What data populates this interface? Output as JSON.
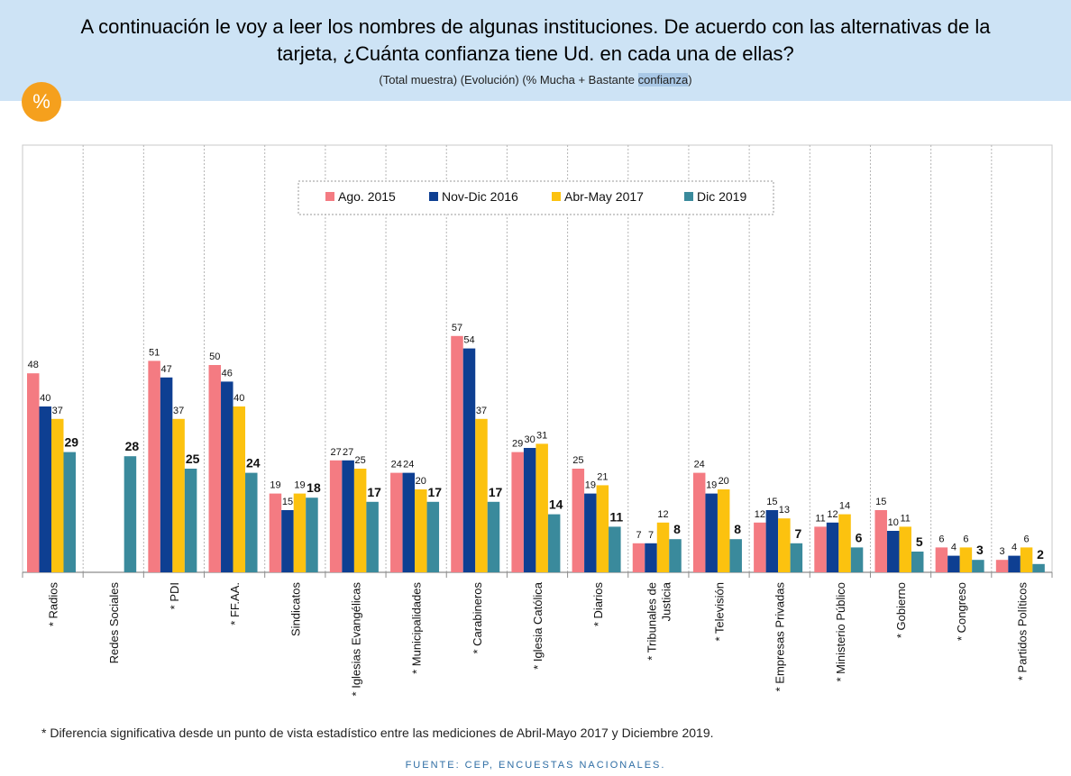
{
  "header": {
    "title_line1": "A continuación le voy a leer los nombres de algunas instituciones. De acuerdo con las alternativas de la",
    "title_line2": "tarjeta, ¿Cuánta confianza tiene Ud. en cada una de ellas?",
    "subtitle_main": "(Total muestra) (Evolución) (% Mucha + Bastante ",
    "subtitle_highlight": "confianza",
    "subtitle_end": ")",
    "badge": "%"
  },
  "chart_data": {
    "type": "bar",
    "ylim": [
      0,
      60
    ],
    "legend_position": "top-center",
    "categories": [
      "* Radios",
      "Redes Sociales",
      "* PDI",
      "* FF.AA.",
      "Sindicatos",
      "* Iglesias Evangélicas",
      "* Municipalidades",
      "* Carabineros",
      "* Iglesia Católica",
      "* Diarios",
      "* Tribunales de Justicia",
      "* Televisión",
      "* Empresas Privadas",
      "* Ministerio Público",
      "* Gobierno",
      "* Congreso",
      "* Partidos Políticos"
    ],
    "series": [
      {
        "name": "Ago. 2015",
        "color": "#f47b82",
        "values": [
          48,
          null,
          51,
          50,
          19,
          27,
          24,
          57,
          29,
          25,
          7,
          24,
          12,
          11,
          15,
          6,
          3
        ]
      },
      {
        "name": "Nov-Dic 2016",
        "color": "#0e3f92",
        "values": [
          40,
          null,
          47,
          46,
          15,
          27,
          24,
          54,
          30,
          19,
          7,
          19,
          15,
          12,
          10,
          4,
          4
        ]
      },
      {
        "name": "Abr-May 2017",
        "color": "#fcc20f",
        "values": [
          37,
          null,
          37,
          40,
          19,
          25,
          20,
          37,
          31,
          21,
          12,
          20,
          13,
          14,
          11,
          6,
          6
        ]
      },
      {
        "name": "Dic 2019",
        "color": "#3a8a9c",
        "values": [
          29,
          28,
          25,
          24,
          18,
          17,
          17,
          17,
          14,
          11,
          8,
          8,
          7,
          6,
          5,
          3,
          2
        ]
      }
    ]
  },
  "footnote": "* Diferencia significativa desde un punto de vista estadístico entre las mediciones de Abril-Mayo 2017 y Diciembre 2019.",
  "source": "FUENTE: CEP, ENCUESTAS NACIONALES."
}
